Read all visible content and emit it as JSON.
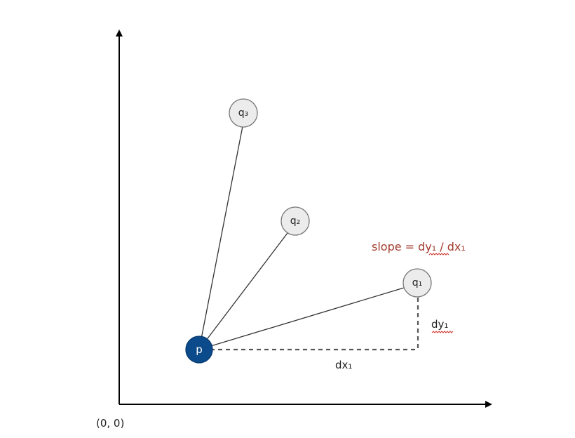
{
  "origin_label": "(0, 0)",
  "nodes": {
    "p": {
      "label": "p",
      "fill": "#0b4a8b"
    },
    "q1": {
      "label": "q₁",
      "fill": "#ececec"
    },
    "q2": {
      "label": "q₂",
      "fill": "#ececec"
    },
    "q3": {
      "label": "q₃",
      "fill": "#ececec"
    }
  },
  "labels": {
    "dx": "dx₁",
    "dy": "dy₁",
    "slope": "slope = dy₁ / dx₁"
  },
  "colors": {
    "axis": "#000000",
    "edge": "#333333",
    "dashed": "#555555",
    "slope_text": "#a23a2d",
    "spellcheck_underline": "#d0342c"
  }
}
